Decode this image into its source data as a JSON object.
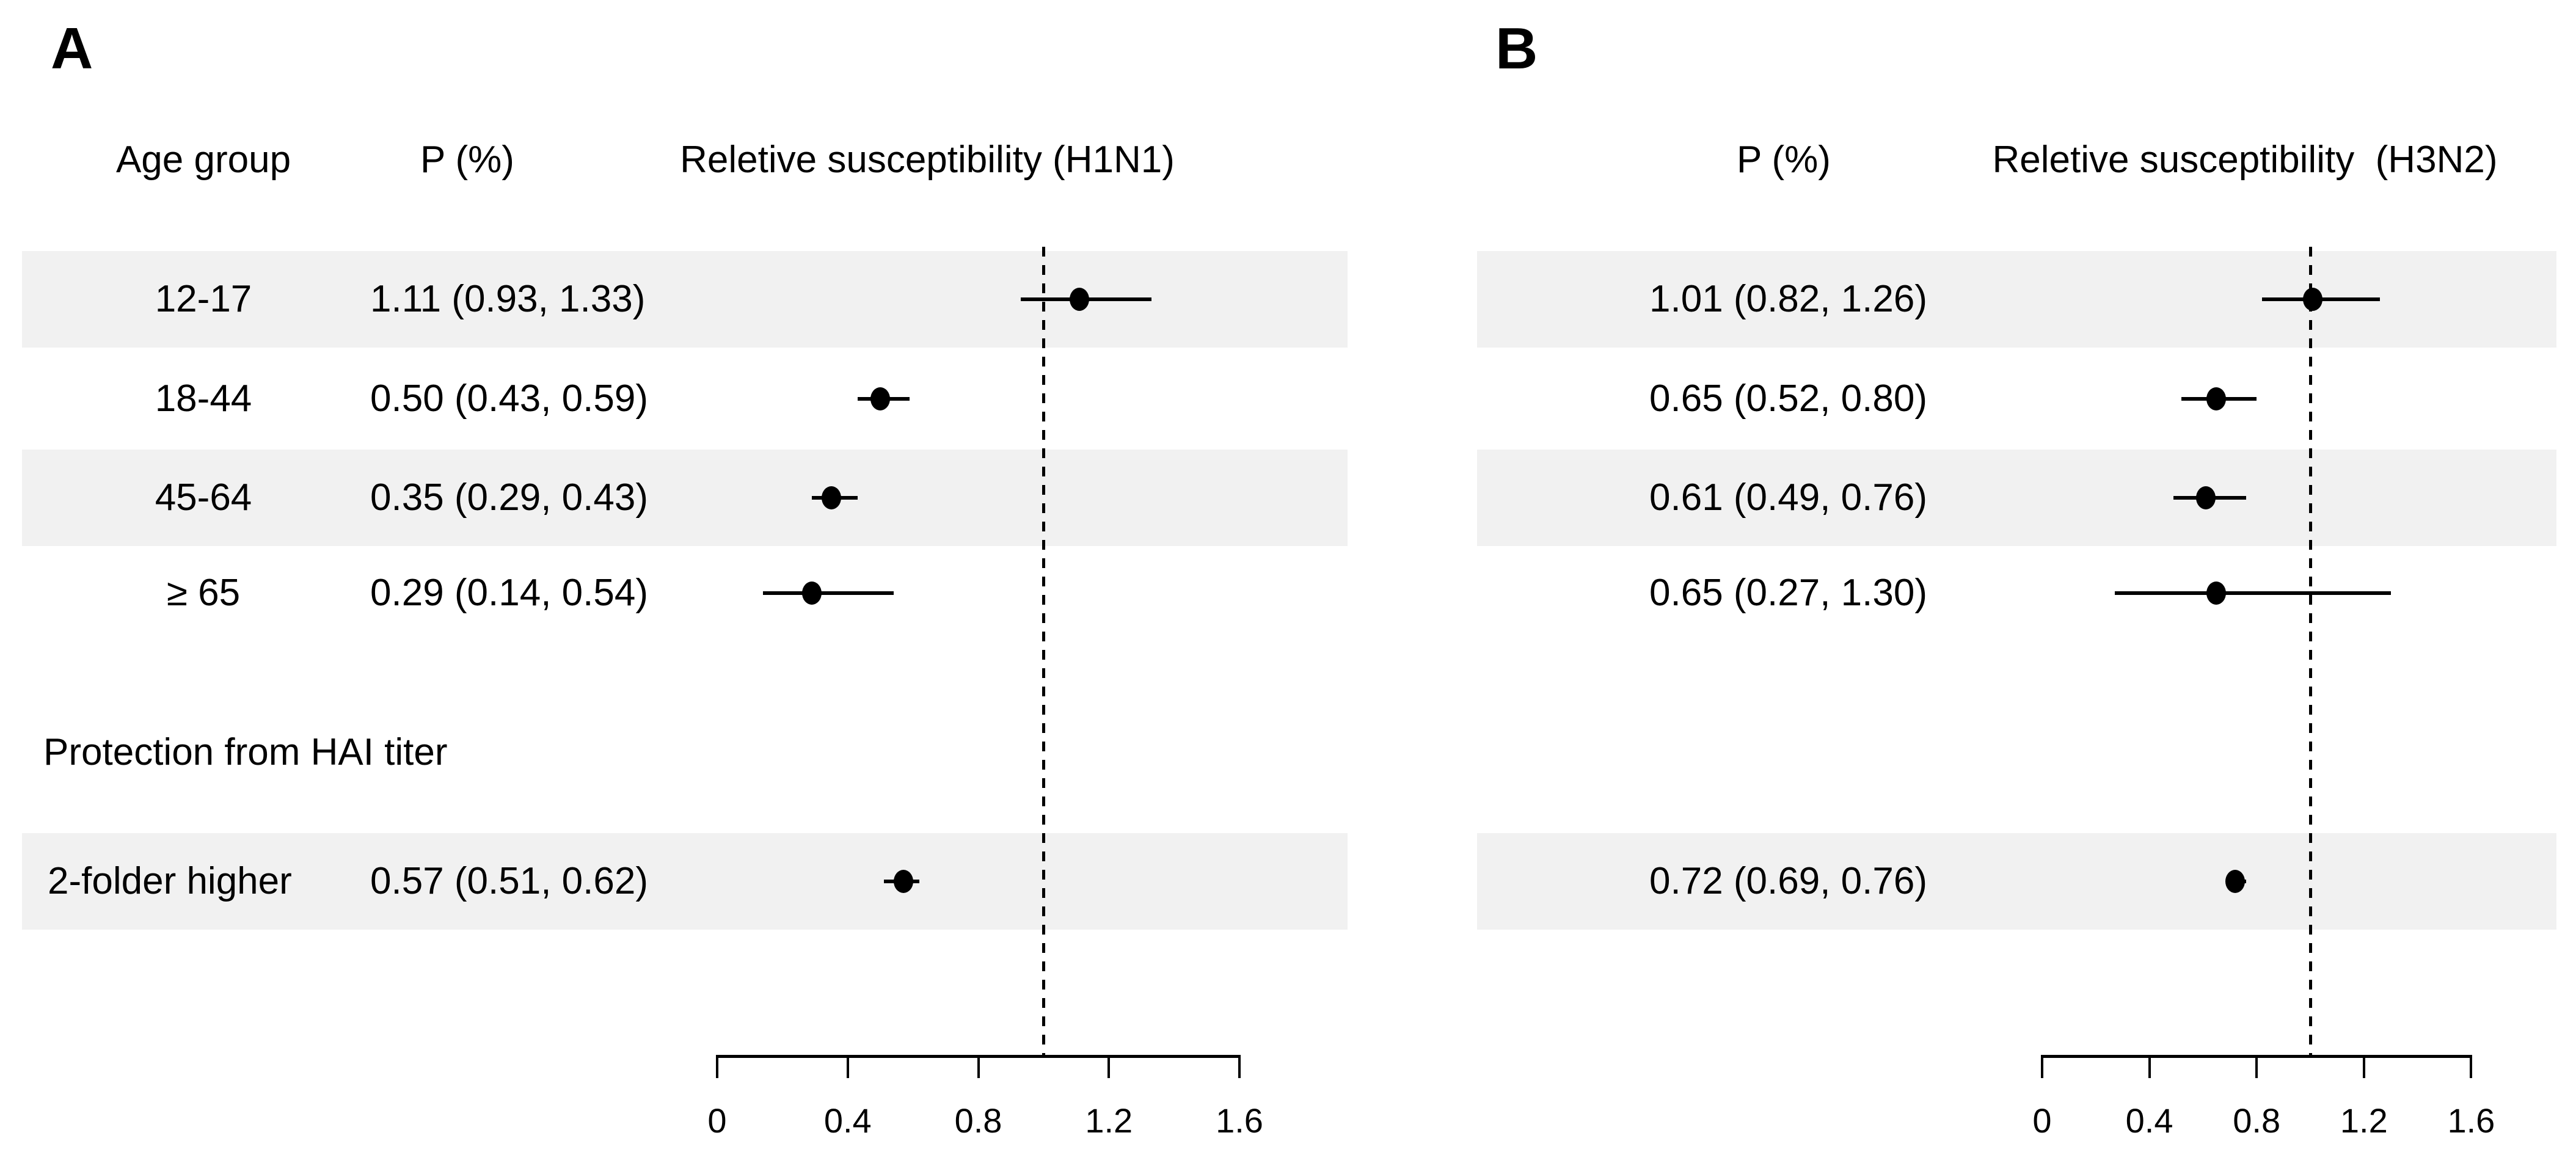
{
  "figure": {
    "background": "#ffffff",
    "stripe_color": "#f1f1f1",
    "ink_color": "#000000"
  },
  "chart_data": [
    {
      "type": "scatter",
      "chart_style": "forest-plot",
      "panel_label": "A",
      "columns": {
        "group": "Age group",
        "estimate": "P (%)",
        "plot": "Reletive susceptibility (H1N1)"
      },
      "section_label": "Protection from HAI titer",
      "rows": [
        {
          "group": "12-17",
          "section": "age",
          "text": "1.11 (0.93, 1.33)",
          "estimate": 1.11,
          "ci_low": 0.93,
          "ci_high": 1.33,
          "striped": true
        },
        {
          "group": "18-44",
          "section": "age",
          "text": "0.50 (0.43, 0.59)",
          "estimate": 0.5,
          "ci_low": 0.43,
          "ci_high": 0.59,
          "striped": false
        },
        {
          "group": "45-64",
          "section": "age",
          "text": "0.35 (0.29, 0.43)",
          "estimate": 0.35,
          "ci_low": 0.29,
          "ci_high": 0.43,
          "striped": true
        },
        {
          "group": "≥ 65",
          "section": "age",
          "text": "0.29 (0.14, 0.54)",
          "estimate": 0.29,
          "ci_low": 0.14,
          "ci_high": 0.54,
          "striped": false
        },
        {
          "group": "2-folder higher",
          "section": "hai",
          "text": "0.57 (0.51, 0.62)",
          "estimate": 0.57,
          "ci_low": 0.51,
          "ci_high": 0.62,
          "striped": true
        }
      ],
      "xaxis": {
        "range": [
          0,
          1.6
        ],
        "ticks": [
          0,
          0.4,
          0.8,
          1.2,
          1.6
        ],
        "tick_labels": [
          "0",
          "0.4",
          "0.8",
          "1.2",
          "1.6"
        ],
        "reference_line": 1.0,
        "reference_style": "dashed"
      }
    },
    {
      "type": "scatter",
      "chart_style": "forest-plot",
      "panel_label": "B",
      "columns": {
        "estimate": "P (%)",
        "plot": "Reletive susceptibility  (H3N2)"
      },
      "rows": [
        {
          "text": "1.01 (0.82, 1.26)",
          "estimate": 1.01,
          "ci_low": 0.82,
          "ci_high": 1.26,
          "striped": true
        },
        {
          "text": "0.65 (0.52, 0.80)",
          "estimate": 0.65,
          "ci_low": 0.52,
          "ci_high": 0.8,
          "striped": false
        },
        {
          "text": "0.61 (0.49, 0.76)",
          "estimate": 0.61,
          "ci_low": 0.49,
          "ci_high": 0.76,
          "striped": true
        },
        {
          "text": "0.65 (0.27, 1.30)",
          "estimate": 0.65,
          "ci_low": 0.27,
          "ci_high": 1.3,
          "striped": false
        },
        {
          "text": "0.72 (0.69, 0.76)",
          "estimate": 0.72,
          "ci_low": 0.69,
          "ci_high": 0.76,
          "striped": true
        }
      ],
      "xaxis": {
        "range": [
          0,
          1.6
        ],
        "ticks": [
          0,
          0.4,
          0.8,
          1.2,
          1.6
        ],
        "tick_labels": [
          "0",
          "0.4",
          "0.8",
          "1.2",
          "1.6"
        ],
        "reference_line": 1.0,
        "reference_style": "dashed"
      }
    }
  ]
}
